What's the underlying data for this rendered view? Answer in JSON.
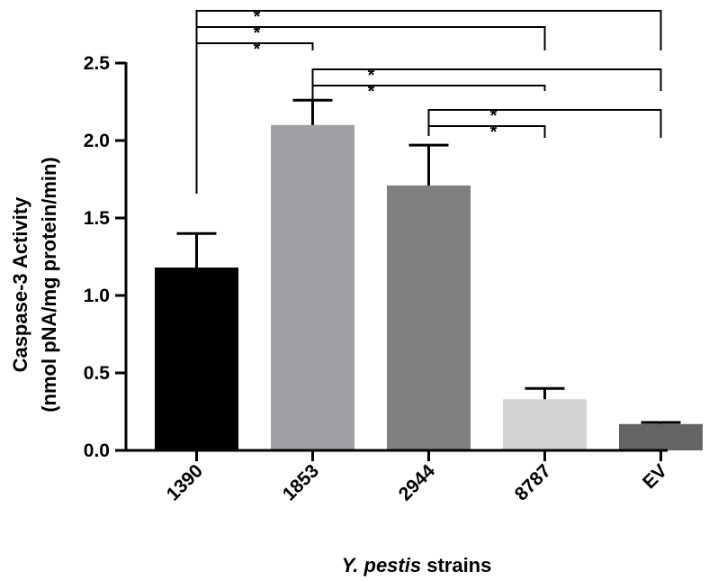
{
  "chart_data": {
    "type": "bar",
    "categories": [
      "1390",
      "1853",
      "2944",
      "8787",
      "EV"
    ],
    "values": [
      1.18,
      2.1,
      1.71,
      0.33,
      0.17
    ],
    "errors": [
      0.22,
      0.16,
      0.26,
      0.07,
      0.01
    ],
    "colors": [
      "#000000",
      "#a0a0a4",
      "#7f7f7f",
      "#d3d3d3",
      "#646464"
    ],
    "ylim": [
      0,
      2.5
    ],
    "yticks": [
      "0.0",
      "0.5",
      "1.0",
      "1.5",
      "2.0",
      "2.5"
    ],
    "ylabel_line1": "Caspase-3  Activity",
    "ylabel_line2": "(nmol pNA/mg protein/min)",
    "xlabel_italic": "Y. pestis",
    "xlabel_rest": " strains",
    "grid": false,
    "significance": [
      {
        "from": "1390",
        "to": "EV",
        "label": "*"
      },
      {
        "from": "1390",
        "to": "8787",
        "label": "*"
      },
      {
        "from": "1390",
        "to": "1853",
        "label": "*"
      },
      {
        "from": "1853",
        "to": "EV",
        "label": "*"
      },
      {
        "from": "1853",
        "to": "8787",
        "label": "*"
      },
      {
        "from": "2944",
        "to": "EV",
        "label": "*"
      },
      {
        "from": "2944",
        "to": "8787",
        "label": "*"
      }
    ]
  }
}
